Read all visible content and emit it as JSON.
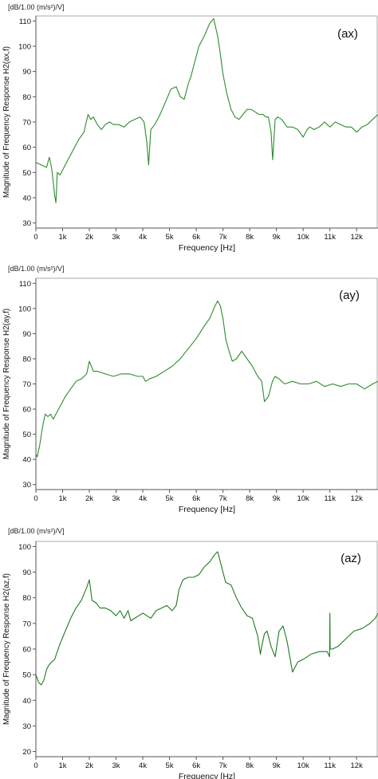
{
  "chart_data": [
    {
      "type": "line",
      "unit_label": "[dB/1.00 (m/s²)/V]",
      "ylabel": "Magnitude of Frequency Response H2(ax,f)",
      "xlabel": "Frequency [Hz]",
      "annotation": "(ax)",
      "xlim": [
        0,
        12800
      ],
      "ylim": [
        28,
        112
      ],
      "yticks": [
        30,
        40,
        50,
        60,
        70,
        80,
        90,
        100,
        110
      ],
      "xticks": [
        0,
        1000,
        2000,
        3000,
        4000,
        5000,
        6000,
        7000,
        8000,
        9000,
        10000,
        11000,
        12000
      ],
      "xtick_labels": [
        "0",
        "1k",
        "2k",
        "3k",
        "4k",
        "5k",
        "6k",
        "7k",
        "8k",
        "9k",
        "10k",
        "11k",
        "12k"
      ],
      "grid": false,
      "color": "#2e8b2e",
      "series": [
        {
          "x": [
            0,
            200,
            400,
            500,
            550,
            600,
            700,
            750,
            800,
            900,
            1000,
            1200,
            1400,
            1600,
            1800,
            1950,
            2050,
            2150,
            2300,
            2450,
            2600,
            2750,
            2900,
            3100,
            3300,
            3500,
            3700,
            3900,
            4050,
            4150,
            4220,
            4300,
            4450,
            4650,
            4850,
            5050,
            5250,
            5400,
            5550,
            5700,
            5800,
            5950,
            6100,
            6300,
            6500,
            6650,
            6800,
            6900,
            7000,
            7150,
            7300,
            7450,
            7600,
            7750,
            7900,
            8050,
            8200,
            8350,
            8500,
            8600,
            8700,
            8800,
            8860,
            8900,
            8950,
            9050,
            9200,
            9400,
            9600,
            9800,
            10000,
            10150,
            10250,
            10400,
            10600,
            10800,
            11000,
            11200,
            11400,
            11600,
            11800,
            12000,
            12200,
            12400,
            12600,
            12800
          ],
          "y": [
            54,
            53,
            52,
            56,
            54,
            51,
            41,
            38,
            50,
            49,
            51,
            55,
            59,
            63,
            66,
            73,
            71,
            72,
            69,
            67,
            69,
            70,
            69,
            69,
            68,
            70,
            71,
            72,
            70,
            62,
            53,
            67,
            69,
            73,
            78,
            83,
            84,
            80,
            79,
            85,
            88,
            94,
            100,
            104,
            109,
            111,
            104,
            97,
            89,
            81,
            75,
            72,
            71,
            73,
            75,
            75,
            74,
            73,
            73,
            72,
            72,
            66,
            55,
            62,
            71,
            72,
            71,
            68,
            68,
            67,
            64,
            67,
            68,
            67,
            68,
            70,
            68,
            70,
            69,
            68,
            68,
            66,
            68,
            69,
            71,
            73
          ]
        }
      ]
    },
    {
      "type": "line",
      "unit_label": "[dB/1.00 (m/s²)/V]",
      "ylabel": "Magnitude of Frequency Response H2(ay,f)",
      "xlabel": "Frequency [Hz]",
      "annotation": "(ay)",
      "xlim": [
        0,
        12800
      ],
      "ylim": [
        28,
        112
      ],
      "yticks": [
        30,
        40,
        50,
        60,
        70,
        80,
        90,
        100,
        110
      ],
      "xticks": [
        0,
        1000,
        2000,
        3000,
        4000,
        5000,
        6000,
        7000,
        8000,
        9000,
        10000,
        11000,
        12000
      ],
      "xtick_labels": [
        "0",
        "1k",
        "2k",
        "3k",
        "4k",
        "5k",
        "6k",
        "7k",
        "8k",
        "9k",
        "10k",
        "11k",
        "12k"
      ],
      "grid": false,
      "color": "#2e8b2e",
      "series": [
        {
          "x": [
            0,
            50,
            150,
            250,
            350,
            450,
            550,
            650,
            750,
            900,
            1100,
            1300,
            1500,
            1700,
            1900,
            2000,
            2150,
            2300,
            2600,
            2900,
            3200,
            3500,
            3800,
            4000,
            4100,
            4250,
            4500,
            4800,
            5100,
            5400,
            5700,
            6000,
            6300,
            6500,
            6700,
            6800,
            6900,
            7000,
            7100,
            7200,
            7350,
            7500,
            7700,
            7900,
            8100,
            8300,
            8450,
            8550,
            8700,
            8850,
            8950,
            9100,
            9300,
            9600,
            9900,
            10200,
            10500,
            10800,
            11100,
            11400,
            11700,
            12000,
            12300,
            12600,
            12800
          ],
          "y": [
            42,
            41,
            46,
            53,
            58,
            57,
            58,
            56,
            58,
            61,
            65,
            68,
            71,
            72,
            74,
            79,
            75,
            75,
            74,
            73,
            74,
            74,
            73,
            73,
            71,
            72,
            73,
            75,
            77,
            80,
            84,
            88,
            93,
            96,
            101,
            103,
            101,
            96,
            88,
            84,
            79,
            80,
            83,
            80,
            77,
            73,
            71,
            63,
            65,
            71,
            73,
            72,
            70,
            71,
            70,
            70,
            71,
            69,
            70,
            69,
            70,
            70,
            68,
            70,
            71
          ]
        }
      ]
    },
    {
      "type": "line",
      "unit_label": "[dB/1.00 (m/s²)/V]",
      "ylabel": "Magnitude of Frequency Response H2(az,f)",
      "xlabel": "Frequency [Hz]",
      "annotation": "(az)",
      "xlim": [
        0,
        12800
      ],
      "ylim": [
        18,
        102
      ],
      "yticks": [
        20,
        30,
        40,
        50,
        60,
        70,
        80,
        90,
        100
      ],
      "xticks": [
        0,
        1000,
        2000,
        3000,
        4000,
        5000,
        6000,
        7000,
        8000,
        9000,
        10000,
        11000,
        12000
      ],
      "xtick_labels": [
        "0",
        "1k",
        "2k",
        "3k",
        "4k",
        "5k",
        "6k",
        "7k",
        "8k",
        "9k",
        "10k",
        "11k",
        "12k"
      ],
      "grid": false,
      "color": "#1f7a1f",
      "series": [
        {
          "x": [
            0,
            100,
            200,
            300,
            400,
            500,
            700,
            900,
            1100,
            1300,
            1500,
            1700,
            1900,
            2000,
            2100,
            2250,
            2400,
            2600,
            2800,
            3000,
            3150,
            3300,
            3450,
            3550,
            3700,
            3850,
            4000,
            4150,
            4300,
            4500,
            4700,
            4900,
            5100,
            5250,
            5350,
            5500,
            5700,
            5900,
            6100,
            6300,
            6500,
            6700,
            6800,
            6900,
            7000,
            7100,
            7300,
            7500,
            7700,
            7900,
            8100,
            8300,
            8400,
            8450,
            8550,
            8650,
            8800,
            8950,
            9100,
            9250,
            9400,
            9500,
            9600,
            9700,
            9800,
            10000,
            10300,
            10600,
            10900,
            10990,
            11000,
            11010,
            11100,
            11300,
            11600,
            11900,
            12200,
            12500,
            12700,
            12800
          ],
          "y": [
            50,
            47,
            46,
            48,
            52,
            54,
            56,
            62,
            67,
            72,
            76,
            79,
            84,
            87,
            79,
            78,
            76,
            76,
            75,
            73,
            75,
            72,
            75,
            71,
            72,
            73,
            74,
            73,
            72,
            75,
            76,
            77,
            75,
            77,
            83,
            87,
            88,
            88,
            89,
            92,
            94,
            97,
            98,
            94,
            90,
            86,
            85,
            80,
            76,
            73,
            72,
            65,
            58,
            61,
            66,
            67,
            61,
            57,
            67,
            69,
            63,
            57,
            51,
            53,
            55,
            56,
            58,
            59,
            59,
            57,
            74,
            60,
            60,
            61,
            64,
            67,
            68,
            70,
            72,
            74
          ]
        }
      ]
    }
  ]
}
